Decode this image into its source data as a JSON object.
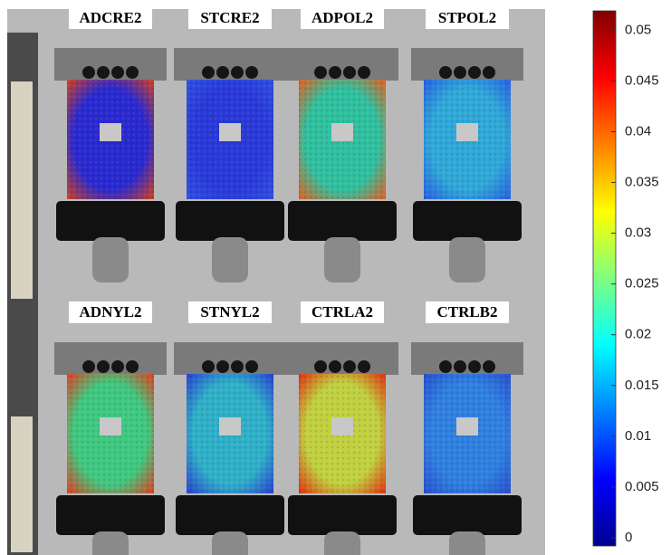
{
  "specimens": [
    "ADCRE2",
    "STCRE2",
    "ADPOL2",
    "STPOL2",
    "ADNYL2",
    "STNYL2",
    "CTRLA2",
    "CTRLB2"
  ],
  "colorbar": {
    "lim": [
      -0.0008,
      0.0519
    ],
    "ticks": [
      0,
      0.005,
      0.01,
      0.015,
      0.02,
      0.025,
      0.03,
      0.035,
      0.04,
      0.045,
      0.05
    ]
  }
}
